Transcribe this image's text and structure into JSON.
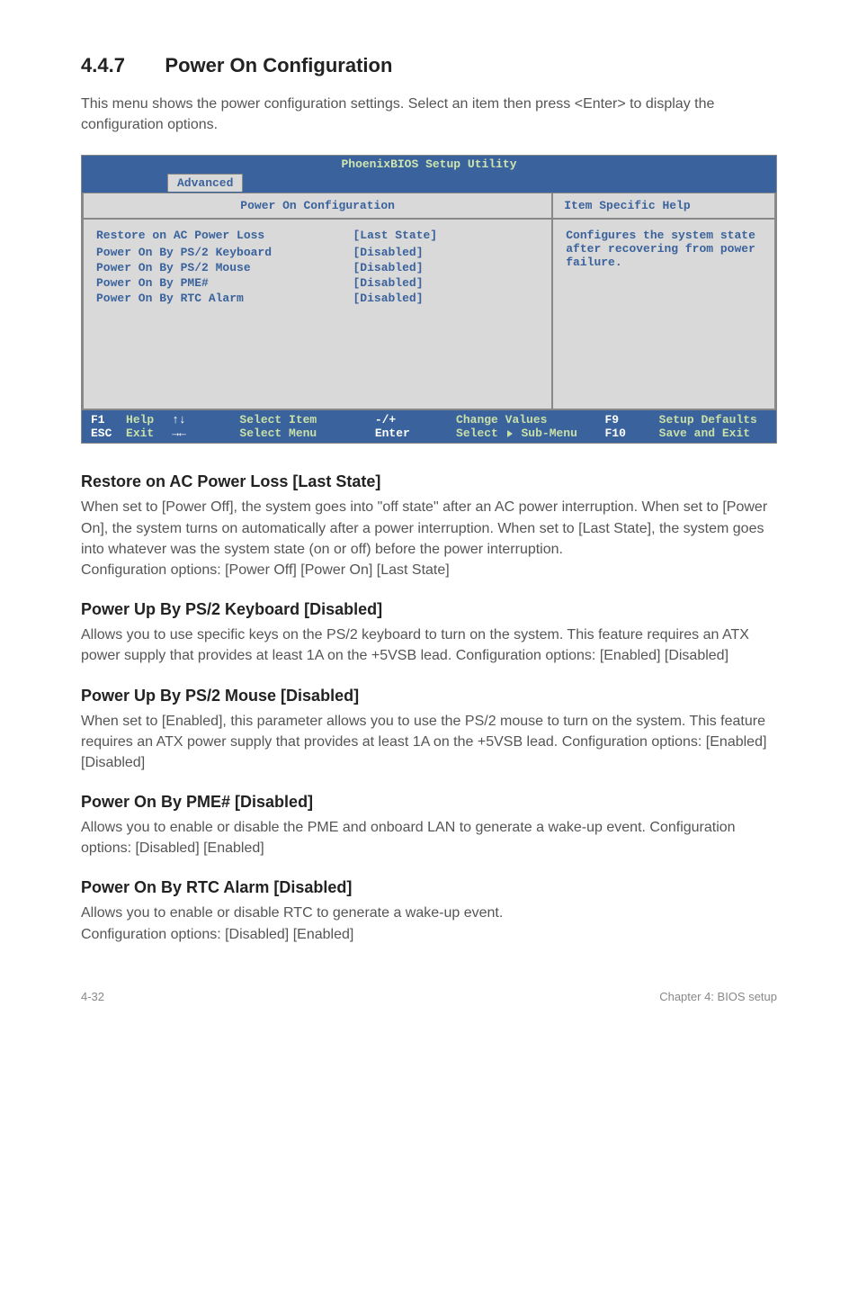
{
  "section": {
    "number": "4.4.7",
    "title": "Power On Configuration"
  },
  "intro": "This menu shows the power configuration settings.  Select an item then press <Enter> to display the configuration options.",
  "bios": {
    "title": "PhoenixBIOS Setup Utility",
    "tab": "Advanced",
    "left_header": "Power On Configuration",
    "right_header": "Item Specific Help",
    "rows": [
      {
        "label": "Restore on AC Power Loss",
        "value": "[Last State]"
      },
      {
        "label": "",
        "value": ""
      },
      {
        "label": "Power On By PS/2 Keyboard",
        "value": "[Disabled]"
      },
      {
        "label": "Power On By PS/2 Mouse",
        "value": "[Disabled]"
      },
      {
        "label": "Power On By PME#",
        "value": "[Disabled]"
      },
      {
        "label": "Power On By RTC Alarm",
        "value": "[Disabled]"
      }
    ],
    "help": "Configures the system state after recovering from power failure.",
    "footer": {
      "f1": "F1",
      "help": "Help",
      "arrows1": "↑↓",
      "select_item": "Select Item",
      "minusplus": "-/+",
      "change_values": "Change Values",
      "f9": "F9",
      "setup_defaults": "Setup Defaults",
      "esc": "ESC",
      "exit": "Exit",
      "arrows2": "→←",
      "select_menu": "Select Menu",
      "enter": "Enter",
      "select_sub": "Select",
      "sub_menu": "Sub-Menu",
      "f10": "F10",
      "save_exit": "Save and Exit"
    },
    "colors": {
      "bar_bg": "#3a629c",
      "panel_bg": "#d9d9d9",
      "text_blue": "#3a629c",
      "accent_green": "#c8e0a8",
      "border": "#888888"
    }
  },
  "blocks": [
    {
      "head": "Restore on AC Power Loss [Last State]",
      "body": "When set to [Power Off], the system goes into \"off state\" after an AC power interruption. When set to [Power On], the system turns on automatically after a power interruption. When set to [Last State], the system goes into whatever was the system state (on or off) before the power interruption.\nConfiguration options: [Power Off] [Power On] [Last State]"
    },
    {
      "head": "Power Up By PS/2 Keyboard [Disabled]",
      "body": "Allows you to use specific keys on the PS/2 keyboard to turn on the system. This feature requires an ATX power supply that provides at least 1A on the +5VSB lead. Configuration options: [Enabled] [Disabled]"
    },
    {
      "head": "Power Up By PS/2 Mouse [Disabled]",
      "body": "When set to [Enabled], this parameter allows you to use the PS/2 mouse to turn on the system. This feature requires an ATX power supply that provides at least 1A on the +5VSB lead. Configuration options: [Enabled] [Disabled]"
    },
    {
      "head": "Power On By PME# [Disabled]",
      "body": "Allows you to enable or disable the PME and onboard LAN to generate a wake-up event. Configuration options: [Disabled] [Enabled]"
    },
    {
      "head": "Power On By RTC Alarm [Disabled]",
      "body": "Allows you to enable or disable RTC to generate a wake-up event.\nConfiguration options: [Disabled] [Enabled]"
    }
  ],
  "footer": {
    "left": "4-32",
    "right": "Chapter 4: BIOS setup"
  }
}
